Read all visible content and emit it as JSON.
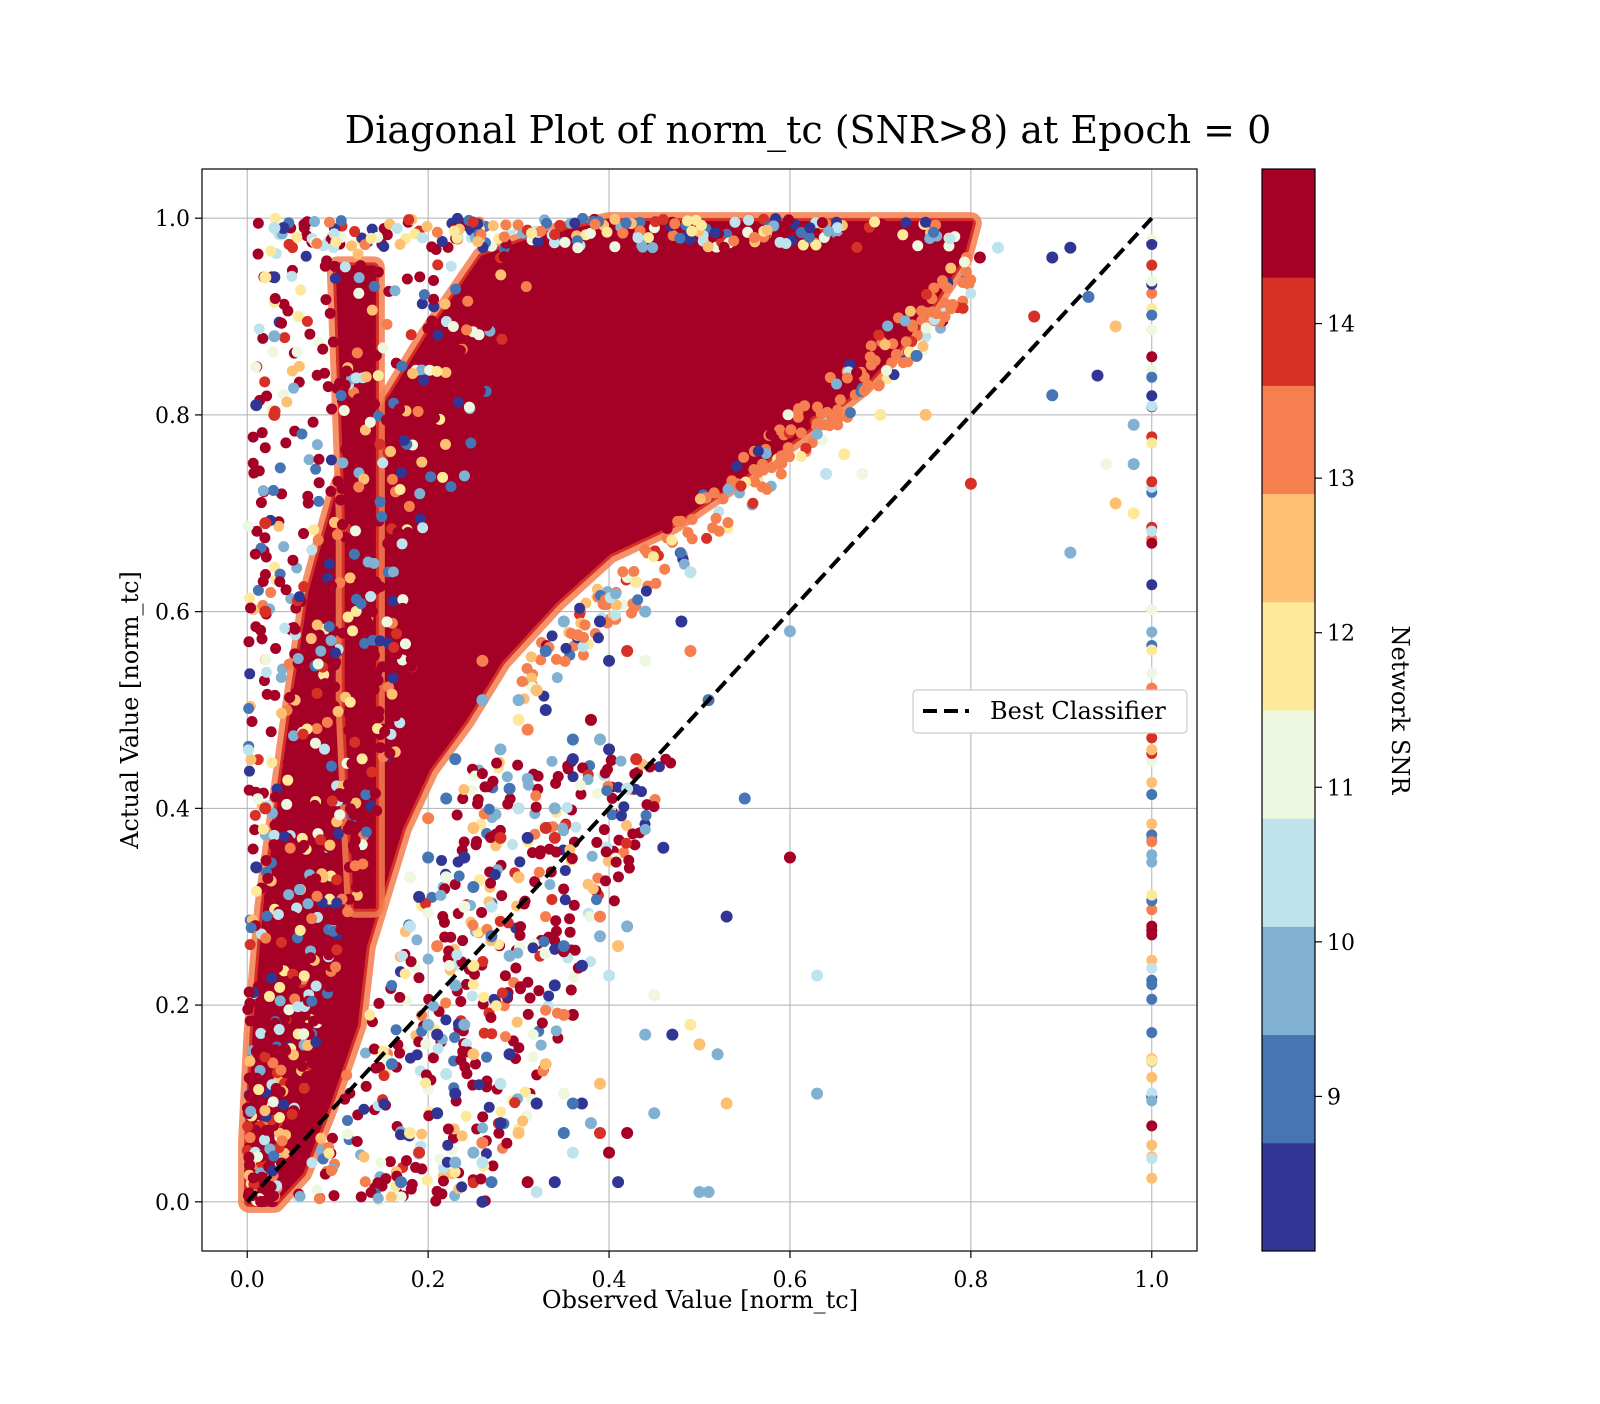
{
  "chart_data": {
    "type": "scatter",
    "title": "Diagonal Plot of norm_tc (SNR>8) at Epoch = 0",
    "xlabel": "Observed Value [norm_tc]",
    "ylabel": "Actual Value [norm_tc]",
    "xlim": [
      -0.05,
      1.05
    ],
    "ylim": [
      -0.05,
      1.05
    ],
    "xticks": [
      "0.0",
      "0.2",
      "0.4",
      "0.6",
      "0.8",
      "1.0"
    ],
    "yticks": [
      "0.0",
      "0.2",
      "0.4",
      "0.6",
      "0.8",
      "1.0"
    ],
    "grid": true,
    "legend": {
      "label": "Best Classifier",
      "location": "center-right"
    },
    "reference_line": {
      "name": "Best Classifier",
      "x": [
        0,
        1
      ],
      "y": [
        0,
        1
      ],
      "style": "dashed",
      "color": "#000000"
    },
    "colorbar": {
      "label": "Network SNR",
      "range": [
        8,
        15
      ],
      "ticks": [
        "9",
        "10",
        "11",
        "12",
        "13",
        "14"
      ],
      "levels": [
        8.0,
        8.7,
        9.4,
        10.1,
        10.8,
        11.5,
        12.2,
        12.9,
        13.6,
        14.3,
        15.0
      ],
      "colors": [
        "#313695",
        "#4575b4",
        "#80b1d3",
        "#bee3ed",
        "#eef7df",
        "#fee99b",
        "#fdbf71",
        "#f57f4f",
        "#d73027",
        "#a50026"
      ]
    },
    "points": [
      [
        0.01,
        0.81,
        8.3
      ],
      [
        0.04,
        0.99,
        8.5
      ],
      [
        0.03,
        0.94,
        8.2
      ],
      [
        0.03,
        0.99,
        10.5
      ],
      [
        0.02,
        0.69,
        14.0
      ],
      [
        0.03,
        0.8,
        13.9
      ],
      [
        0.03,
        0.88,
        9.8
      ],
      [
        0.02,
        0.94,
        11.8
      ],
      [
        0.02,
        0.6,
        14.0
      ],
      [
        0.02,
        0.4,
        14.1
      ],
      [
        0.01,
        0.34,
        8.5
      ],
      [
        0.87,
        0.9,
        14.0
      ],
      [
        0.89,
        0.96,
        8.6
      ],
      [
        0.91,
        0.97,
        8.4
      ],
      [
        0.89,
        0.82,
        9.0
      ],
      [
        0.94,
        0.84,
        8.6
      ],
      [
        0.93,
        0.92,
        9.2
      ],
      [
        0.83,
        0.97,
        10.3
      ],
      [
        0.81,
        0.96,
        14.5
      ],
      [
        0.8,
        0.73,
        14.1
      ],
      [
        0.91,
        0.66,
        9.8
      ],
      [
        0.95,
        0.75,
        11.2
      ],
      [
        0.96,
        0.71,
        12.7
      ],
      [
        0.96,
        0.89,
        12.7
      ],
      [
        0.98,
        0.7,
        12.0
      ],
      [
        0.98,
        0.79,
        9.5
      ],
      [
        0.98,
        0.75,
        9.8
      ],
      [
        0.75,
        0.8,
        12.6
      ],
      [
        0.74,
        0.86,
        8.9
      ],
      [
        0.7,
        0.8,
        11.8
      ],
      [
        0.68,
        0.74,
        10.8
      ],
      [
        0.66,
        0.76,
        11.8
      ],
      [
        0.64,
        0.74,
        10.2
      ],
      [
        0.6,
        0.58,
        9.5
      ],
      [
        0.51,
        0.51,
        8.7
      ],
      [
        0.48,
        0.59,
        8.5
      ],
      [
        0.49,
        0.64,
        10.1
      ],
      [
        0.44,
        0.6,
        9.6
      ],
      [
        0.43,
        0.63,
        11.8
      ],
      [
        0.42,
        0.56,
        14.1
      ],
      [
        0.44,
        0.55,
        11.2
      ],
      [
        0.49,
        0.56,
        13.3
      ],
      [
        0.43,
        0.45,
        14.1
      ],
      [
        0.4,
        0.46,
        8.6
      ],
      [
        0.39,
        0.47,
        9.9
      ],
      [
        0.38,
        0.49,
        14.3
      ],
      [
        0.36,
        0.45,
        8.5
      ],
      [
        0.36,
        0.47,
        8.9
      ],
      [
        0.4,
        0.55,
        8.6
      ],
      [
        0.39,
        0.59,
        8.5
      ],
      [
        0.42,
        0.42,
        10.1
      ],
      [
        0.6,
        0.35,
        14.5
      ],
      [
        0.53,
        0.29,
        8.4
      ],
      [
        0.52,
        0.15,
        9.6
      ],
      [
        0.63,
        0.23,
        10.6
      ],
      [
        0.63,
        0.11,
        9.7
      ],
      [
        0.55,
        0.41,
        8.8
      ],
      [
        0.46,
        0.36,
        8.6
      ],
      [
        0.5,
        0.16,
        12.7
      ],
      [
        0.49,
        0.18,
        12.0
      ],
      [
        0.45,
        0.21,
        11.2
      ],
      [
        0.4,
        0.23,
        10.7
      ],
      [
        0.42,
        0.28,
        10.0
      ],
      [
        0.41,
        0.26,
        12.3
      ],
      [
        0.39,
        0.27,
        9.8
      ],
      [
        0.39,
        0.29,
        13.3
      ],
      [
        0.37,
        0.24,
        8.6
      ],
      [
        0.35,
        0.26,
        9.2
      ],
      [
        0.34,
        0.22,
        8.6
      ],
      [
        0.34,
        0.37,
        14.0
      ],
      [
        0.34,
        0.4,
        9.5
      ],
      [
        0.36,
        0.19,
        14.4
      ],
      [
        0.35,
        0.19,
        13.1
      ],
      [
        0.44,
        0.17,
        9.6
      ],
      [
        0.47,
        0.17,
        8.6
      ],
      [
        0.39,
        0.07,
        13.7
      ],
      [
        0.42,
        0.07,
        14.5
      ],
      [
        0.4,
        0.05,
        14.5
      ],
      [
        0.41,
        0.02,
        8.5
      ],
      [
        0.45,
        0.09,
        9.6
      ],
      [
        0.53,
        0.1,
        12.6
      ],
      [
        0.3,
        0.07,
        12.3
      ],
      [
        0.32,
        0.1,
        8.6
      ],
      [
        0.34,
        0.02,
        8.4
      ],
      [
        0.35,
        0.07,
        8.7
      ],
      [
        0.36,
        0.05,
        10.4
      ],
      [
        0.37,
        0.1,
        8.6
      ],
      [
        0.38,
        0.08,
        9.5
      ],
      [
        0.5,
        0.01,
        9.4
      ],
      [
        0.51,
        0.01,
        9.8
      ],
      [
        0.31,
        0.02,
        14.5
      ],
      [
        0.32,
        0.01,
        10.6
      ],
      [
        0.26,
        0.0,
        8.5
      ],
      [
        0.35,
        0.11,
        10.8
      ],
      [
        0.33,
        0.14,
        12.6
      ],
      [
        0.28,
        0.12,
        10.3
      ],
      [
        0.29,
        0.15,
        8.5
      ],
      [
        0.39,
        0.12,
        12.4
      ],
      [
        0.36,
        0.1,
        9.1
      ],
      [
        0.3,
        0.33,
        12.4
      ],
      [
        0.31,
        0.37,
        8.6
      ],
      [
        0.33,
        0.38,
        14.2
      ],
      [
        0.31,
        0.43,
        9.8
      ],
      [
        0.3,
        0.4,
        10.5
      ],
      [
        0.28,
        0.37,
        13.9
      ],
      [
        0.27,
        0.3,
        10.6
      ],
      [
        0.27,
        0.27,
        8.9
      ],
      [
        0.29,
        0.25,
        9.4
      ],
      [
        0.25,
        0.32,
        9.2
      ],
      [
        0.24,
        0.3,
        11.0
      ],
      [
        0.24,
        0.35,
        8.6
      ],
      [
        0.22,
        0.41,
        9.1
      ],
      [
        0.23,
        0.45,
        8.7
      ],
      [
        0.28,
        0.46,
        9.5
      ],
      [
        0.3,
        0.49,
        11.8
      ],
      [
        0.32,
        0.52,
        12.5
      ],
      [
        0.33,
        0.5,
        8.5
      ],
      [
        0.31,
        0.48,
        13.1
      ],
      [
        0.3,
        0.51,
        9.8
      ],
      [
        0.26,
        0.51,
        10.0
      ],
      [
        0.26,
        0.55,
        13.4
      ],
      [
        0.33,
        0.56,
        9.3
      ],
      [
        0.35,
        0.59,
        9.6
      ],
      [
        0.29,
        0.42,
        9.1
      ],
      [
        0.25,
        0.38,
        12.2
      ],
      [
        0.22,
        0.33,
        10.8
      ],
      [
        0.2,
        0.35,
        9.1
      ],
      [
        0.21,
        0.17,
        8.6
      ],
      [
        0.2,
        0.18,
        9.8
      ],
      [
        0.23,
        0.11,
        8.6
      ],
      [
        0.22,
        0.13,
        10.1
      ],
      [
        0.25,
        0.05,
        9.8
      ],
      [
        0.26,
        0.04,
        10.2
      ],
      [
        0.27,
        0.02,
        8.9
      ],
      [
        0.23,
        0.04,
        9.5
      ],
      [
        0.21,
        0.09,
        8.5
      ],
      [
        0.25,
        0.15,
        12.5
      ],
      [
        0.24,
        0.18,
        10.0
      ],
      [
        0.26,
        0.06,
        13.1
      ],
      [
        0.28,
        0.08,
        8.5
      ],
      [
        0.19,
        0.05,
        14.2
      ],
      [
        0.18,
        0.07,
        11.8
      ],
      [
        0.17,
        0.02,
        8.7
      ],
      [
        0.16,
        0.14,
        9.3
      ],
      [
        0.18,
        0.28,
        10.4
      ],
      [
        0.19,
        0.31,
        8.6
      ],
      [
        0.21,
        0.26,
        12.9
      ],
      [
        0.23,
        0.22,
        9.9
      ],
      [
        0.25,
        0.24,
        11.5
      ],
      [
        0.2,
        0.39,
        13.5
      ],
      [
        0.18,
        0.33,
        11.4
      ]
    ],
    "density_regions": [
      {
        "snr": 14.6,
        "polygon": [
          [
            0.002,
            0.0
          ],
          [
            0.03,
            0.0
          ],
          [
            0.06,
            0.03
          ],
          [
            0.09,
            0.1
          ],
          [
            0.12,
            0.18
          ],
          [
            0.13,
            0.26
          ],
          [
            0.15,
            0.32
          ],
          [
            0.17,
            0.38
          ],
          [
            0.2,
            0.44
          ],
          [
            0.24,
            0.49
          ],
          [
            0.28,
            0.55
          ],
          [
            0.34,
            0.61
          ],
          [
            0.4,
            0.66
          ],
          [
            0.47,
            0.69
          ],
          [
            0.55,
            0.74
          ],
          [
            0.61,
            0.78
          ],
          [
            0.68,
            0.83
          ],
          [
            0.74,
            0.89
          ],
          [
            0.79,
            0.96
          ],
          [
            0.8,
            0.995
          ],
          [
            0.4,
            0.995
          ],
          [
            0.32,
            0.98
          ],
          [
            0.26,
            0.96
          ],
          [
            0.2,
            0.88
          ],
          [
            0.16,
            0.82
          ],
          [
            0.13,
            0.78
          ],
          [
            0.1,
            0.72
          ],
          [
            0.07,
            0.62
          ],
          [
            0.05,
            0.5
          ],
          [
            0.035,
            0.4
          ],
          [
            0.02,
            0.3
          ],
          [
            0.008,
            0.17
          ],
          [
            0.002,
            0.06
          ]
        ]
      },
      {
        "snr": 14.6,
        "polygon": [
          [
            0.1,
            0.95
          ],
          [
            0.14,
            0.95
          ],
          [
            0.14,
            0.3
          ],
          [
            0.12,
            0.3
          ],
          [
            0.11,
            0.5
          ],
          [
            0.11,
            0.7
          ]
        ]
      }
    ],
    "edge_column": {
      "x": 1.0,
      "y_range": [
        0.0,
        1.0
      ],
      "snr_mix": "full range"
    }
  }
}
